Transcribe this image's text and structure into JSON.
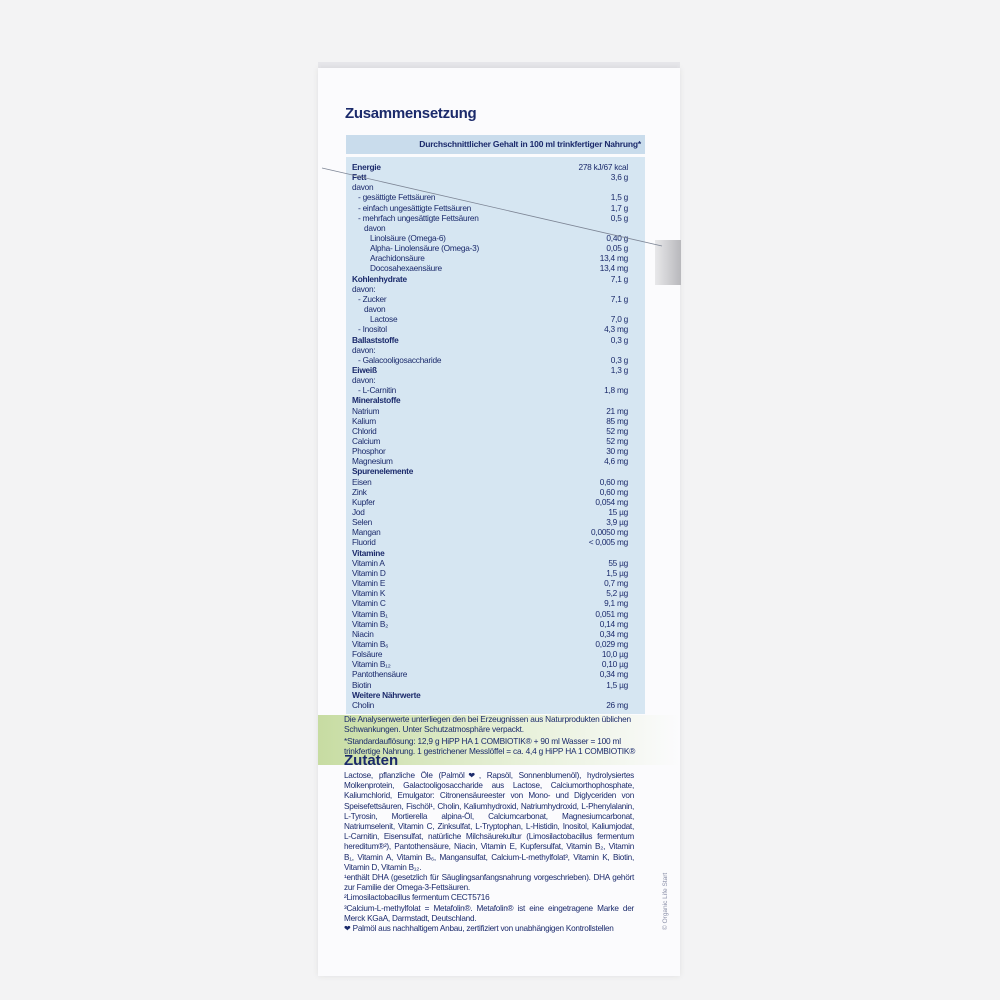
{
  "title": "Zusammensetzung",
  "table": {
    "header": "Durchschnittlicher Gehalt in 100 ml trinkfertiger Nahrung*",
    "rows": [
      {
        "label": "Energie",
        "value": "278 kJ/67 kcal",
        "bold": true,
        "level": 0
      },
      {
        "label": "Fett",
        "value": "3,6 g",
        "bold": true,
        "level": 0
      },
      {
        "label": "davon",
        "level": 0
      },
      {
        "label": "- gesättigte Fettsäuren",
        "value": "1,5 g",
        "level": 1
      },
      {
        "label": "- einfach ungesättigte Fettsäuren",
        "value": "1,7 g",
        "level": 1
      },
      {
        "label": "- mehrfach ungesättigte Fettsäuren",
        "value": "0,5 g",
        "level": 1
      },
      {
        "label": "davon",
        "level": 2
      },
      {
        "label": "Linolsäure (Omega-6)",
        "value": "0,40 g",
        "level": 3
      },
      {
        "label": "Alpha- Linolensäure (Omega-3)",
        "value": "0,05 g",
        "level": 3
      },
      {
        "label": "Arachidonsäure",
        "value": "13,4 mg",
        "level": 3
      },
      {
        "label": "Docosahexaensäure",
        "value": "13,4 mg",
        "level": 3
      },
      {
        "label": "Kohlenhydrate",
        "value": "7,1 g",
        "bold": true,
        "level": 0
      },
      {
        "label": "davon:",
        "level": 0
      },
      {
        "label": "- Zucker",
        "value": "7,1 g",
        "level": 1
      },
      {
        "label": "davon",
        "level": 2
      },
      {
        "label": "Lactose",
        "value": "7,0 g",
        "level": 3
      },
      {
        "label": "- Inositol",
        "value": "4,3 mg",
        "level": 1
      },
      {
        "label": "Ballaststoffe",
        "value": "0,3 g",
        "bold": true,
        "level": 0
      },
      {
        "label": "davon:",
        "level": 0
      },
      {
        "label": "- Galacooligosaccharide",
        "value": "0,3 g",
        "level": 1
      },
      {
        "label": "Eiweiß",
        "value": "1,3 g",
        "bold": true,
        "level": 0
      },
      {
        "label": "davon:",
        "level": 0
      },
      {
        "label": "- L-Carnitin",
        "value": "1,8 mg",
        "level": 1
      },
      {
        "label": "Mineralstoffe",
        "bold": true,
        "level": 0
      },
      {
        "label": "Natrium",
        "value": "21 mg",
        "level": 0
      },
      {
        "label": "Kalium",
        "value": "85 mg",
        "level": 0
      },
      {
        "label": "Chlorid",
        "value": "52 mg",
        "level": 0
      },
      {
        "label": "Calcium",
        "value": "52 mg",
        "level": 0
      },
      {
        "label": "Phosphor",
        "value": "30 mg",
        "level": 0
      },
      {
        "label": "Magnesium",
        "value": "4,6 mg",
        "level": 0
      },
      {
        "label": "Spurenelemente",
        "bold": true,
        "level": 0
      },
      {
        "label": "Eisen",
        "value": "0,60 mg",
        "level": 0
      },
      {
        "label": "Zink",
        "value": "0,60 mg",
        "level": 0
      },
      {
        "label": "Kupfer",
        "value": "0,054 mg",
        "level": 0
      },
      {
        "label": "Jod",
        "value": "15 µg",
        "level": 0
      },
      {
        "label": "Selen",
        "value": "3,9 µg",
        "level": 0
      },
      {
        "label": "Mangan",
        "value": "0,0050 mg",
        "level": 0
      },
      {
        "label": "Fluorid",
        "value": "< 0,005 mg",
        "level": 0
      },
      {
        "label": "Vitamine",
        "bold": true,
        "level": 0
      },
      {
        "label": "Vitamin A",
        "value": "55 µg",
        "level": 0
      },
      {
        "label": "Vitamin D",
        "value": "1,5 µg",
        "level": 0
      },
      {
        "label": "Vitamin E",
        "value": "0,7 mg",
        "level": 0
      },
      {
        "label": "Vitamin K",
        "value": "5,2 µg",
        "level": 0
      },
      {
        "label": "Vitamin C",
        "value": "9,1 mg",
        "level": 0
      },
      {
        "label": "Vitamin B₁",
        "value": "0,051 mg",
        "level": 0
      },
      {
        "label": "Vitamin B₂",
        "value": "0,14 mg",
        "level": 0
      },
      {
        "label": "Niacin",
        "value": "0,34 mg",
        "level": 0
      },
      {
        "label": "Vitamin B₆",
        "value": "0,029 mg",
        "level": 0
      },
      {
        "label": "Folsäure",
        "value": "10,0 µg",
        "level": 0
      },
      {
        "label": "Vitamin B₁₂",
        "value": "0,10 µg",
        "level": 0
      },
      {
        "label": "Pantothensäure",
        "value": "0,34 mg",
        "level": 0
      },
      {
        "label": "Biotin",
        "value": "1,5 µg",
        "level": 0
      },
      {
        "label": "Weitere Nährwerte",
        "bold": true,
        "level": 0
      },
      {
        "label": "Cholin",
        "value": "26 mg",
        "level": 0
      }
    ]
  },
  "notes": [
    "Die Analysenwerte unterliegen den bei Erzeugnissen aus Naturprodukten üblichen Schwankungen. Unter Schutzatmosphäre verpackt.",
    "*Standardauflösung: 12,9 g HiPP HA 1 COMBIOTIK® + 90 ml Wasser = 100 ml trinkfertige Nahrung. 1 gestrichener Messlöffel = ca. 4,4 g HiPP HA 1 COMBIOTIK®"
  ],
  "ingredients_title": "Zutaten",
  "ingredients": [
    "Lactose, pflanzliche Öle (Palmöl❤, Rapsöl, Sonnenblumenöl), hydrolysiertes Molkenprotein, Galactooligosaccharide aus Lactose, Calciumorthophosphate, Kaliumchlorid, Emulgator: Citronensäureester von Mono- und Diglyceriden von Speisefettsäuren, Fischöl¹, Cholin, Kaliumhydroxid, Natriumhydroxid, L-Phenylalanin, L-Tyrosin, Mortierella alpina-Öl, Calciumcarbonat, Magnesiumcarbonat, Natriumselenit, Vitamin C, Zinksulfat, L-Tryptophan, L-Histidin, Inositol, Kaliumjodat, L-Carnitin, Eisensulfat, natürliche Milchsäurekultur (Limosilactobacillus fermentum hereditum®²), Pantothensäure, Niacin, Vitamin E, Kupfersulfat, Vitamin B₂, Vitamin B₁, Vitamin A, Vitamin B₆, Mangansulfat, Calcium-L-methylfolat³, Vitamin K, Biotin, Vitamin D, Vitamin B₁₂.",
    "¹enthält DHA (gesetzlich für Säuglingsanfangsnahrung vorgeschrieben). DHA gehört zur Familie der Omega-3-Fettsäuren.",
    "²Limosilactobacillus fermentum CECT5716",
    "³Calcium-L-methylfolat = Metafolin®. Metafolin® ist eine eingetragene Marke der Merck KGaA, Darmstadt, Deutschland.",
    "❤ Palmöl aus nachhaltigem Anbau, zertifiziert von unabhängigen Kontrollstellen"
  ],
  "copyright": "© Organic Life Start"
}
